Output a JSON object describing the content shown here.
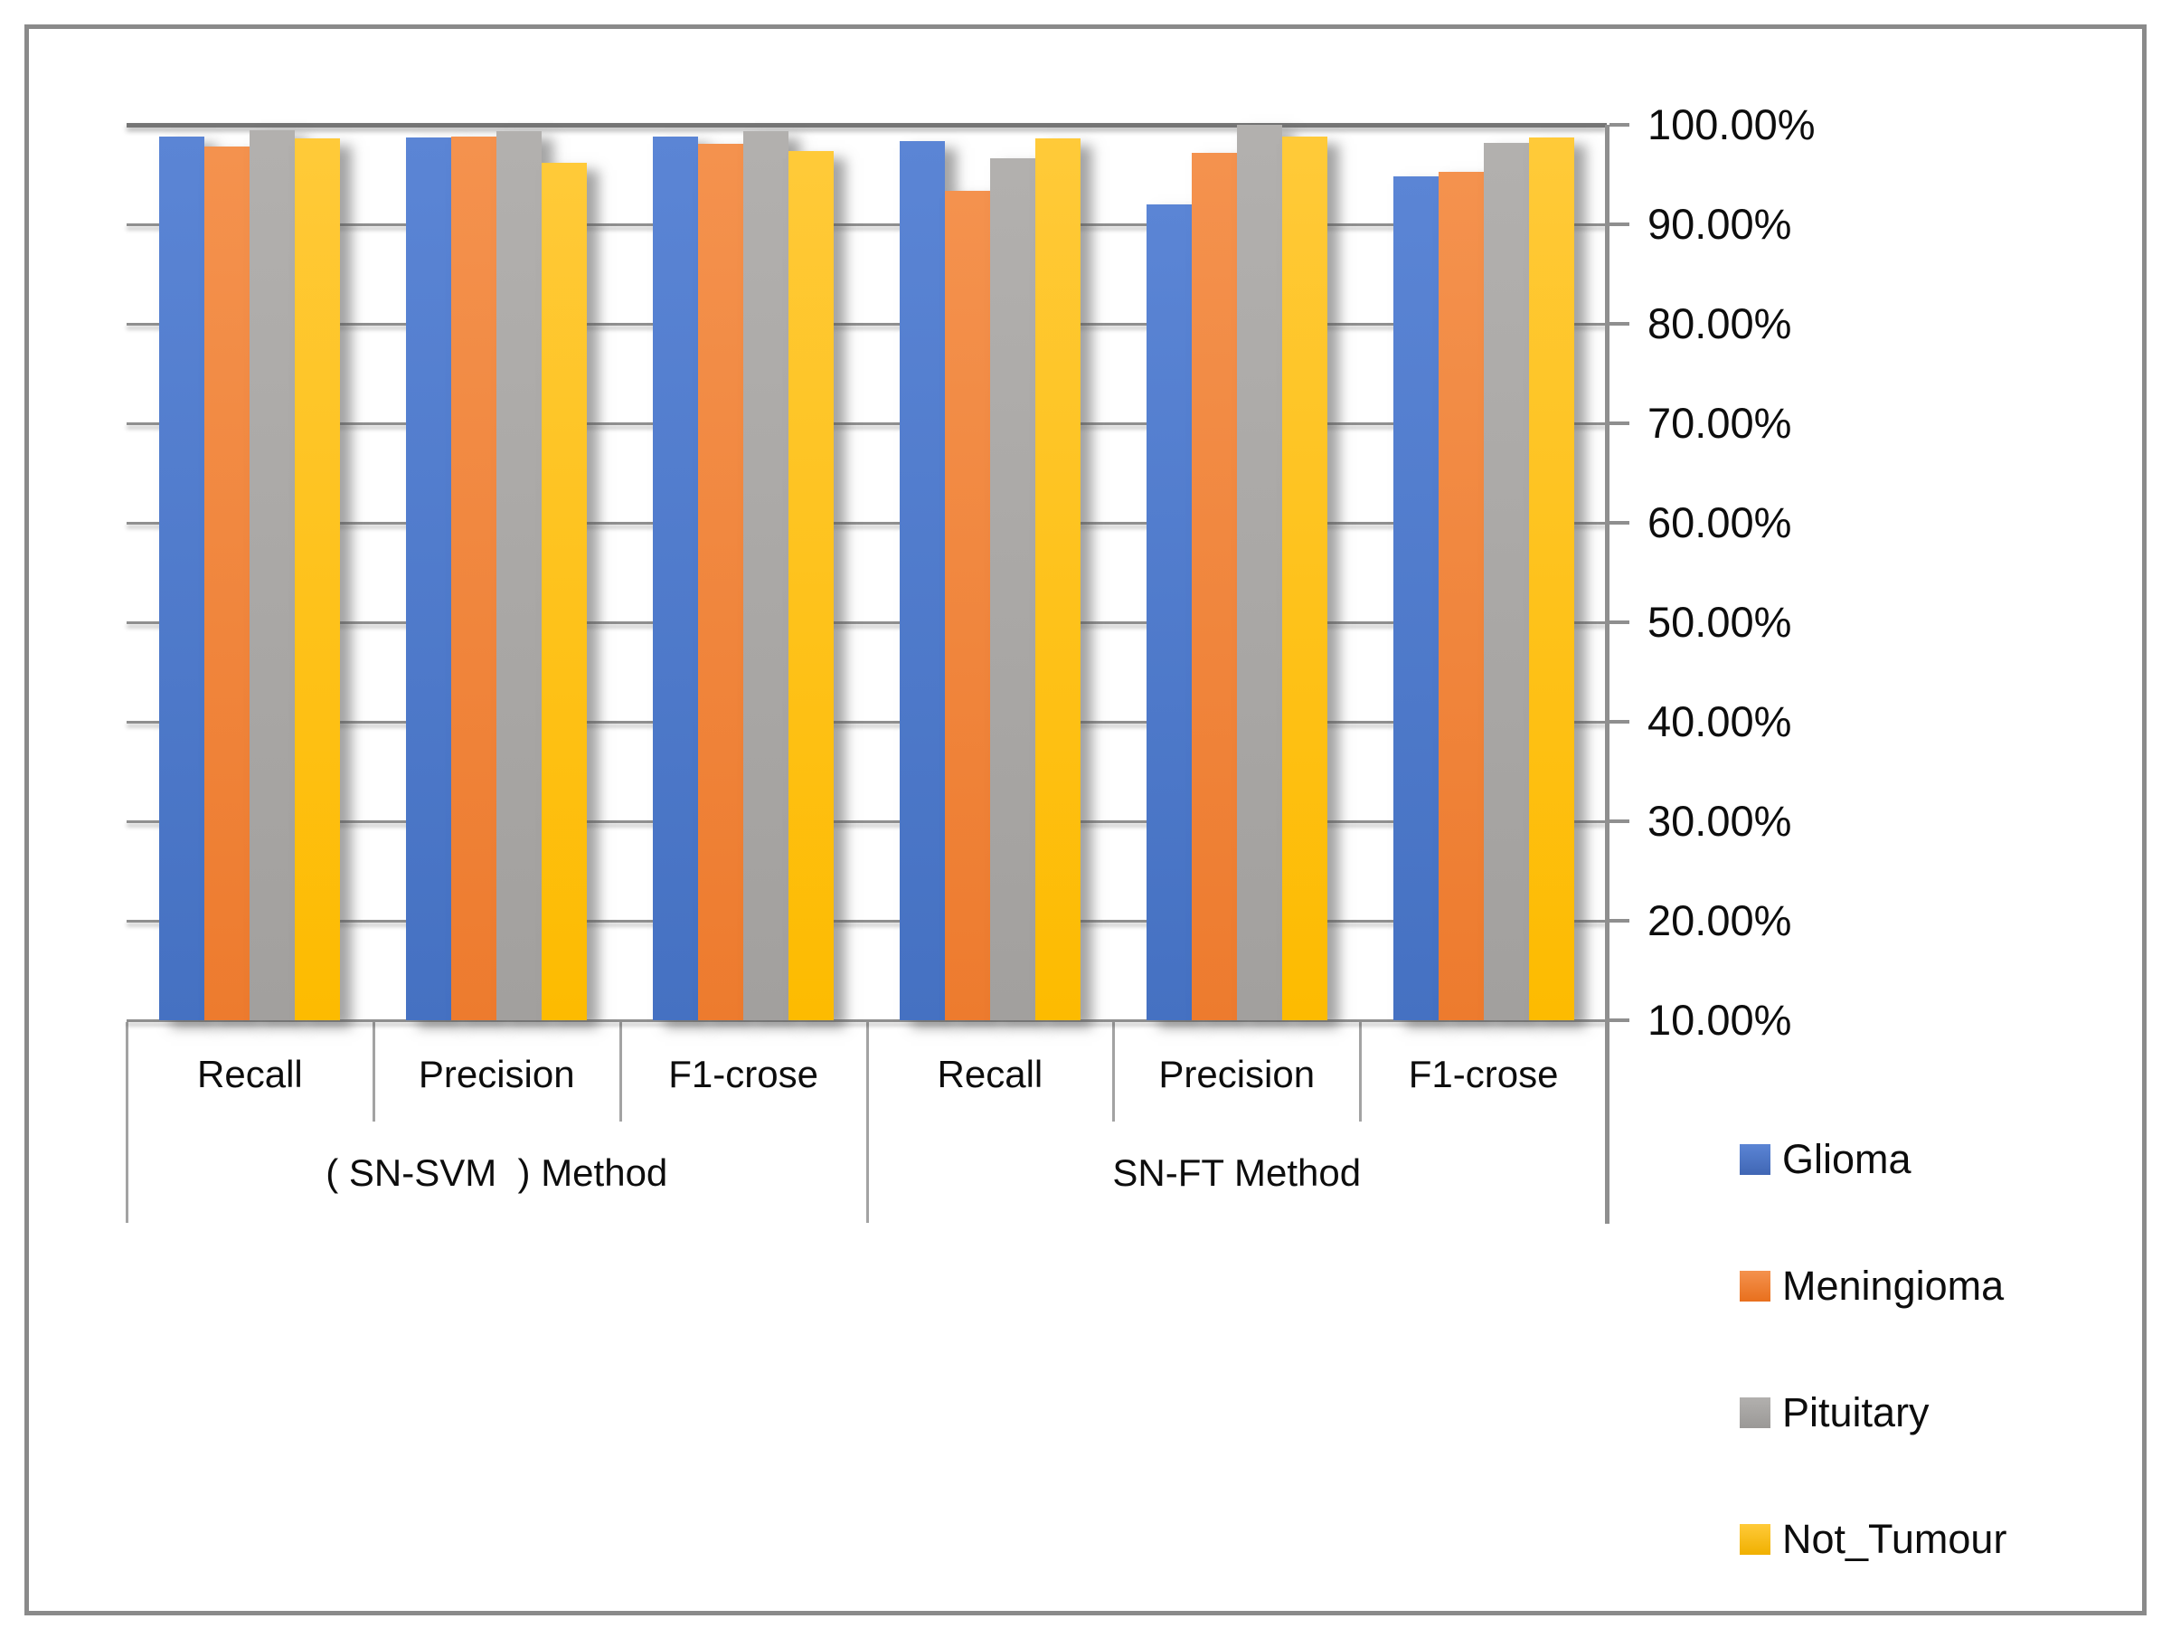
{
  "figure": {
    "background": "#ffffff",
    "border_color": "#8a8a8a",
    "gridline_color": "#8f8f8f"
  },
  "chart_data": {
    "type": "bar",
    "title": "",
    "grid": true,
    "y_axis": {
      "side": "right",
      "min": 10,
      "max": 100,
      "step": 10,
      "unit": "%",
      "tick_labels": [
        "100.00%",
        "90.00%",
        "80.00%",
        "70.00%",
        "60.00%",
        "50.00%",
        "40.00%",
        "30.00%",
        "20.00%",
        "10.00%"
      ]
    },
    "x_axis": {
      "metric_labels": [
        "Recall",
        "Precision",
        "F1-crose",
        "Recall",
        "Precision",
        "F1-crose"
      ],
      "method_groups": [
        {
          "label": "( SN-SVM  ) Method",
          "start": 0,
          "end": 2
        },
        {
          "label": "SN-FT Method",
          "start": 3,
          "end": 5
        }
      ]
    },
    "series": [
      {
        "name": "Glioma",
        "color": "#4472C4",
        "values": [
          98.8,
          98.7,
          98.8,
          98.4,
          92.0,
          94.8
        ]
      },
      {
        "name": "Meningioma",
        "color": "#ED7D31",
        "values": [
          97.8,
          98.8,
          98.1,
          93.4,
          97.2,
          95.3
        ]
      },
      {
        "name": "Pituitary",
        "color": "#A5A5A5",
        "values": [
          99.5,
          99.4,
          99.4,
          96.6,
          100.0,
          98.2
        ]
      },
      {
        "name": "Not_Tumour",
        "color": "#FFC000",
        "values": [
          98.6,
          96.2,
          97.4,
          98.6,
          98.8,
          98.7
        ]
      }
    ],
    "legend": {
      "position": "right",
      "entries": [
        "Glioma",
        "Meningioma",
        "Pituitary",
        "Not_Tumour"
      ]
    }
  }
}
